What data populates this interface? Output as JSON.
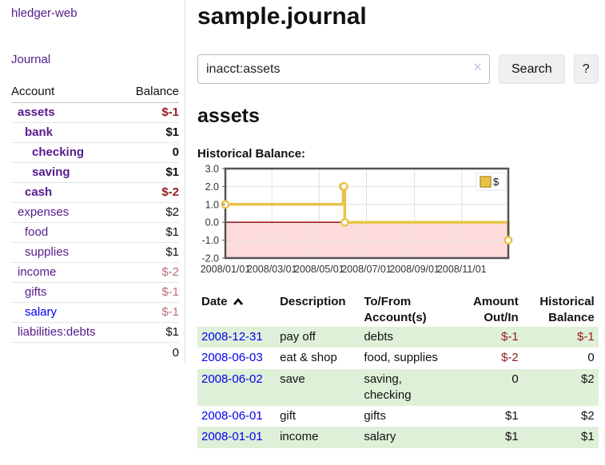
{
  "colors": {
    "purple_link": "#551a8b",
    "blue_link": "#0000ee",
    "negative_strong": "#941b1b",
    "negative_light": "#b96c75",
    "row_stripe_green": "#dff0d8",
    "chart_line": "#e8c34a",
    "chart_negative_fill": "#ffdcdc",
    "chart_zero_line": "#8b0000"
  },
  "sidebar": {
    "brand": "hledger-web",
    "nav": [
      {
        "label": "Journal"
      }
    ],
    "accounts": {
      "col_account": "Account",
      "col_balance": "Balance",
      "rows": [
        {
          "account": "assets",
          "balance": "$-1",
          "indent": 1,
          "bold": true,
          "balance_style": "negative_strong"
        },
        {
          "account": "bank",
          "balance": "$1",
          "indent": 2,
          "bold": true,
          "balance_style": "normal"
        },
        {
          "account": "checking",
          "balance": "0",
          "indent": 3,
          "bold": true,
          "balance_style": "normal"
        },
        {
          "account": "saving",
          "balance": "$1",
          "indent": 3,
          "bold": true,
          "balance_style": "normal"
        },
        {
          "account": "cash",
          "balance": "$-2",
          "indent": 2,
          "bold": true,
          "balance_style": "negative_strong"
        },
        {
          "account": "expenses",
          "balance": "$2",
          "indent": 1,
          "bold": false,
          "balance_style": "normal"
        },
        {
          "account": "food",
          "balance": "$1",
          "indent": 2,
          "bold": false,
          "balance_style": "normal"
        },
        {
          "account": "supplies",
          "balance": "$1",
          "indent": 2,
          "bold": false,
          "balance_style": "normal"
        },
        {
          "account": "income",
          "balance": "$-2",
          "indent": 1,
          "bold": false,
          "balance_style": "negative_light"
        },
        {
          "account": "gifts",
          "balance": "$-1",
          "indent": 2,
          "bold": false,
          "balance_style": "negative_light"
        },
        {
          "account": "salary",
          "balance": "$-1",
          "indent": 2,
          "bold": false,
          "balance_style": "negative_light",
          "link_color": "blue"
        },
        {
          "account": "liabilities:debts",
          "balance": "$1",
          "indent": 1,
          "bold": false,
          "balance_style": "normal"
        }
      ],
      "total": "0"
    }
  },
  "header": {
    "title": "sample.journal"
  },
  "search": {
    "value": "inacct:assets",
    "clear_icon": "✕",
    "search_button": "Search",
    "help_button": "?"
  },
  "account_view": {
    "heading": "assets",
    "chart_title": "Historical Balance:"
  },
  "chart_data": {
    "type": "line",
    "step": true,
    "title": "Historical Balance:",
    "series": [
      {
        "name": "$",
        "color": "#e8c34a",
        "points": [
          [
            "2008-01-01",
            1
          ],
          [
            "2008-06-01",
            2
          ],
          [
            "2008-06-02",
            2
          ],
          [
            "2008-06-03",
            0
          ],
          [
            "2008-12-31",
            -1
          ]
        ]
      }
    ],
    "x_range": [
      "2008-01-01",
      "2008-12-31"
    ],
    "x_ticks": [
      "2008/01/01",
      "2008/03/01",
      "2008/05/01",
      "2008/07/01",
      "2008/09/01",
      "2008/11/01"
    ],
    "y_ticks": [
      3.0,
      2.0,
      1.0,
      0.0,
      -1.0,
      -2.0
    ],
    "ylim": [
      -2,
      3
    ],
    "grid": true,
    "legend": {
      "label": "$",
      "position": "top-right"
    },
    "negative_region_shaded": true
  },
  "register": {
    "columns": [
      {
        "lines": [
          "Date"
        ],
        "align": "left",
        "sort": "asc"
      },
      {
        "lines": [
          "Description"
        ],
        "align": "left"
      },
      {
        "lines": [
          "To/From",
          "Account(s)"
        ],
        "align": "left"
      },
      {
        "lines": [
          "Amount",
          "Out/In"
        ],
        "align": "right"
      },
      {
        "lines": [
          "Historical",
          "Balance"
        ],
        "align": "right"
      }
    ],
    "rows": [
      {
        "date": "2008-12-31",
        "description": "pay off",
        "to_from": "debts",
        "amount": "$-1",
        "balance": "$-1",
        "amount_negative": true,
        "balance_negative": true
      },
      {
        "date": "2008-06-03",
        "description": "eat & shop",
        "to_from": "food, supplies",
        "amount": "$-2",
        "balance": "0",
        "amount_negative": true,
        "balance_negative": false
      },
      {
        "date": "2008-06-02",
        "description": "save",
        "to_from": "saving,\nchecking",
        "amount": "0",
        "balance": "$2",
        "amount_negative": false,
        "balance_negative": false
      },
      {
        "date": "2008-06-01",
        "description": "gift",
        "to_from": "gifts",
        "amount": "$1",
        "balance": "$2",
        "amount_negative": false,
        "balance_negative": false
      },
      {
        "date": "2008-01-01",
        "description": "income",
        "to_from": "salary",
        "amount": "$1",
        "balance": "$1",
        "amount_negative": false,
        "balance_negative": false
      }
    ]
  }
}
